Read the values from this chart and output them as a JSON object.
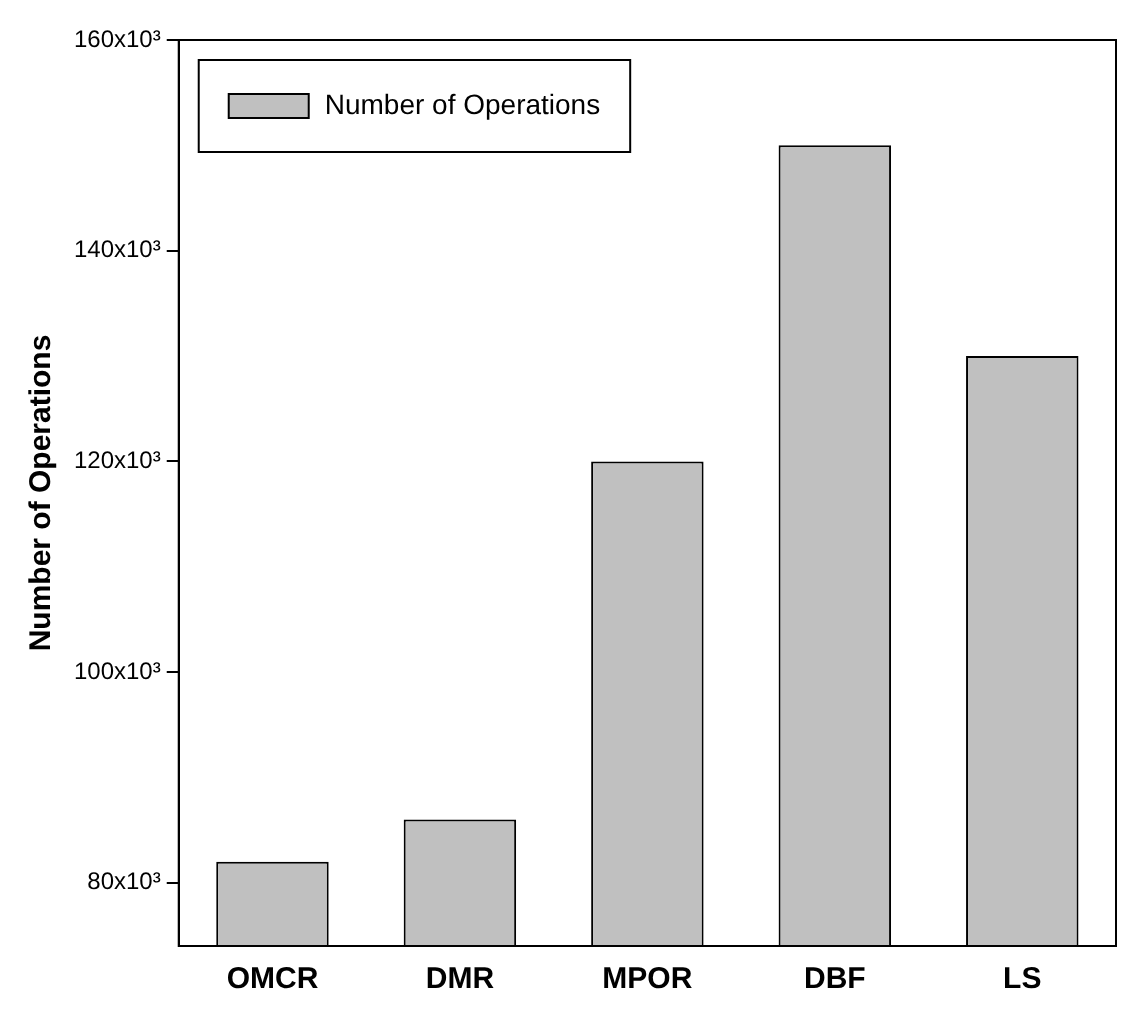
{
  "chart_data": {
    "type": "bar",
    "ylabel": "Number of Operations",
    "categories": [
      "OMCR",
      "DMR",
      "MPOR",
      "DBF",
      "LS"
    ],
    "series": [
      {
        "name": "Number of Operations",
        "color": "#c0c0c0",
        "values": [
          82000,
          86000,
          120000,
          150000,
          130000
        ]
      }
    ],
    "ylim": [
      74000,
      160000
    ],
    "yticks": [
      {
        "value": 80000,
        "label": "80x10³"
      },
      {
        "value": 100000,
        "label": "100x10³"
      },
      {
        "value": 120000,
        "label": "120x10³"
      },
      {
        "value": 140000,
        "label": "140x10³"
      },
      {
        "value": 160000,
        "label": "160x10³"
      }
    ],
    "legend": "top left",
    "grid": false
  }
}
